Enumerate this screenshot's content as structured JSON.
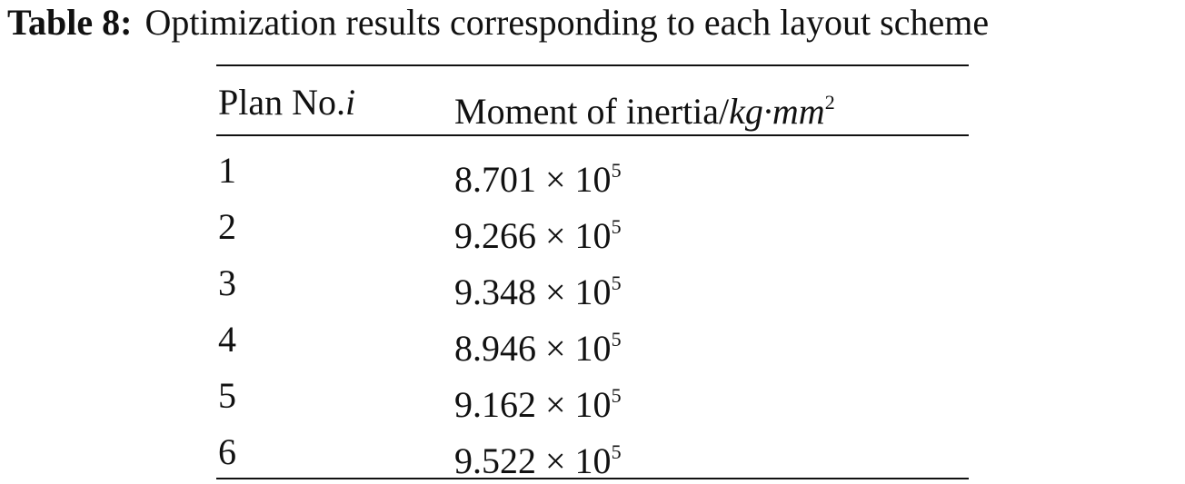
{
  "caption": {
    "label": "Table 8:",
    "text": "Optimization results corresponding to each layout scheme"
  },
  "table": {
    "header": [
      {
        "text": "Plan No.",
        "italic": "i"
      },
      {
        "text": "Moment of inertia/",
        "italic": "kg·mm",
        "sup": "2"
      }
    ],
    "rows": [
      [
        "1",
        {
          "base": "8.701 × 10",
          "exponent": "5"
        }
      ],
      [
        "2",
        {
          "base": "9.266 × 10",
          "exponent": "5"
        }
      ],
      [
        "3",
        {
          "base": "9.348 × 10",
          "exponent": "5"
        }
      ],
      [
        "4",
        {
          "base": "8.946 × 10",
          "exponent": "5"
        }
      ],
      [
        "5",
        {
          "base": "9.162 × 10",
          "exponent": "5"
        }
      ],
      [
        "6",
        {
          "base": "9.522 × 10",
          "exponent": "5"
        }
      ]
    ]
  }
}
